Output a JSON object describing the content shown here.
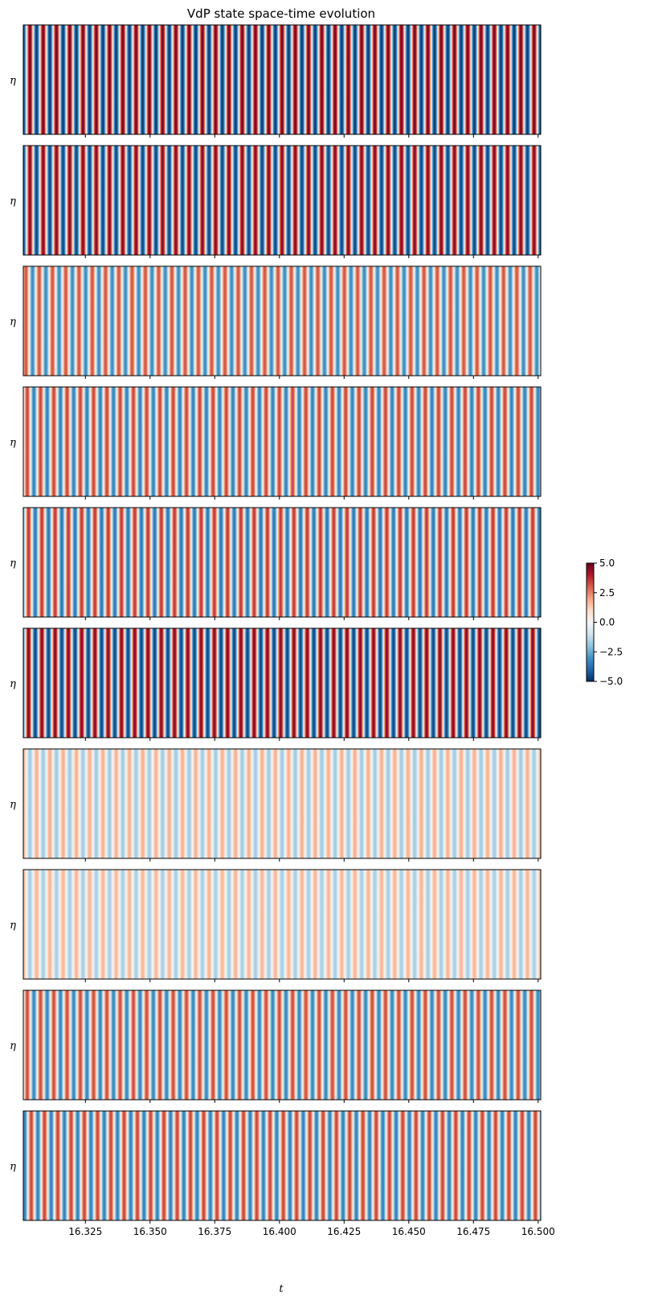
{
  "chart_data": {
    "type": "heatmap",
    "title": "VdP state space-time evolution",
    "xlabel": "t",
    "ylabel": "η",
    "xlim": [
      16.301,
      16.501
    ],
    "x_ticks": [
      "16.325",
      "16.350",
      "16.375",
      "16.400",
      "16.425",
      "16.450",
      "16.475",
      "16.500"
    ],
    "x_tick_values": [
      16.325,
      16.35,
      16.375,
      16.4,
      16.425,
      16.45,
      16.475,
      16.5
    ],
    "colormap": "RdBu_r",
    "colors": {
      "neg": "#053061",
      "mid": "#f7f7f7",
      "pos": "#67001f"
    },
    "colorbar": {
      "range": [
        -5.0,
        5.0
      ],
      "ticks": [
        "5.0",
        "2.5",
        "0.0",
        "−2.5",
        "−5.0"
      ],
      "tick_values": [
        5.0,
        2.5,
        0.0,
        -2.5,
        -5.0
      ]
    },
    "panels": [
      {
        "amplitude": 4.8,
        "stripes": 39,
        "phase": 0.0,
        "sign": -1
      },
      {
        "amplitude": 4.6,
        "stripes": 39,
        "phase": 0.0,
        "sign": -1
      },
      {
        "amplitude": 3.2,
        "stripes": 39,
        "phase": 0.3,
        "sign": -1
      },
      {
        "amplitude": 3.4,
        "stripes": 39,
        "phase": 0.2,
        "sign": -1
      },
      {
        "amplitude": 3.6,
        "stripes": 39,
        "phase": 0.1,
        "sign": -1
      },
      {
        "amplitude": 4.6,
        "stripes": 39,
        "phase": 0.1,
        "sign": -1
      },
      {
        "amplitude": 1.8,
        "stripes": 39,
        "phase": 0.5,
        "sign": -1
      },
      {
        "amplitude": 1.7,
        "stripes": 39,
        "phase": 0.5,
        "sign": -1
      },
      {
        "amplitude": 3.3,
        "stripes": 39,
        "phase": 0.2,
        "sign": -1
      },
      {
        "amplitude": 3.4,
        "stripes": 39,
        "phase": 0.4,
        "sign": 1
      }
    ]
  }
}
